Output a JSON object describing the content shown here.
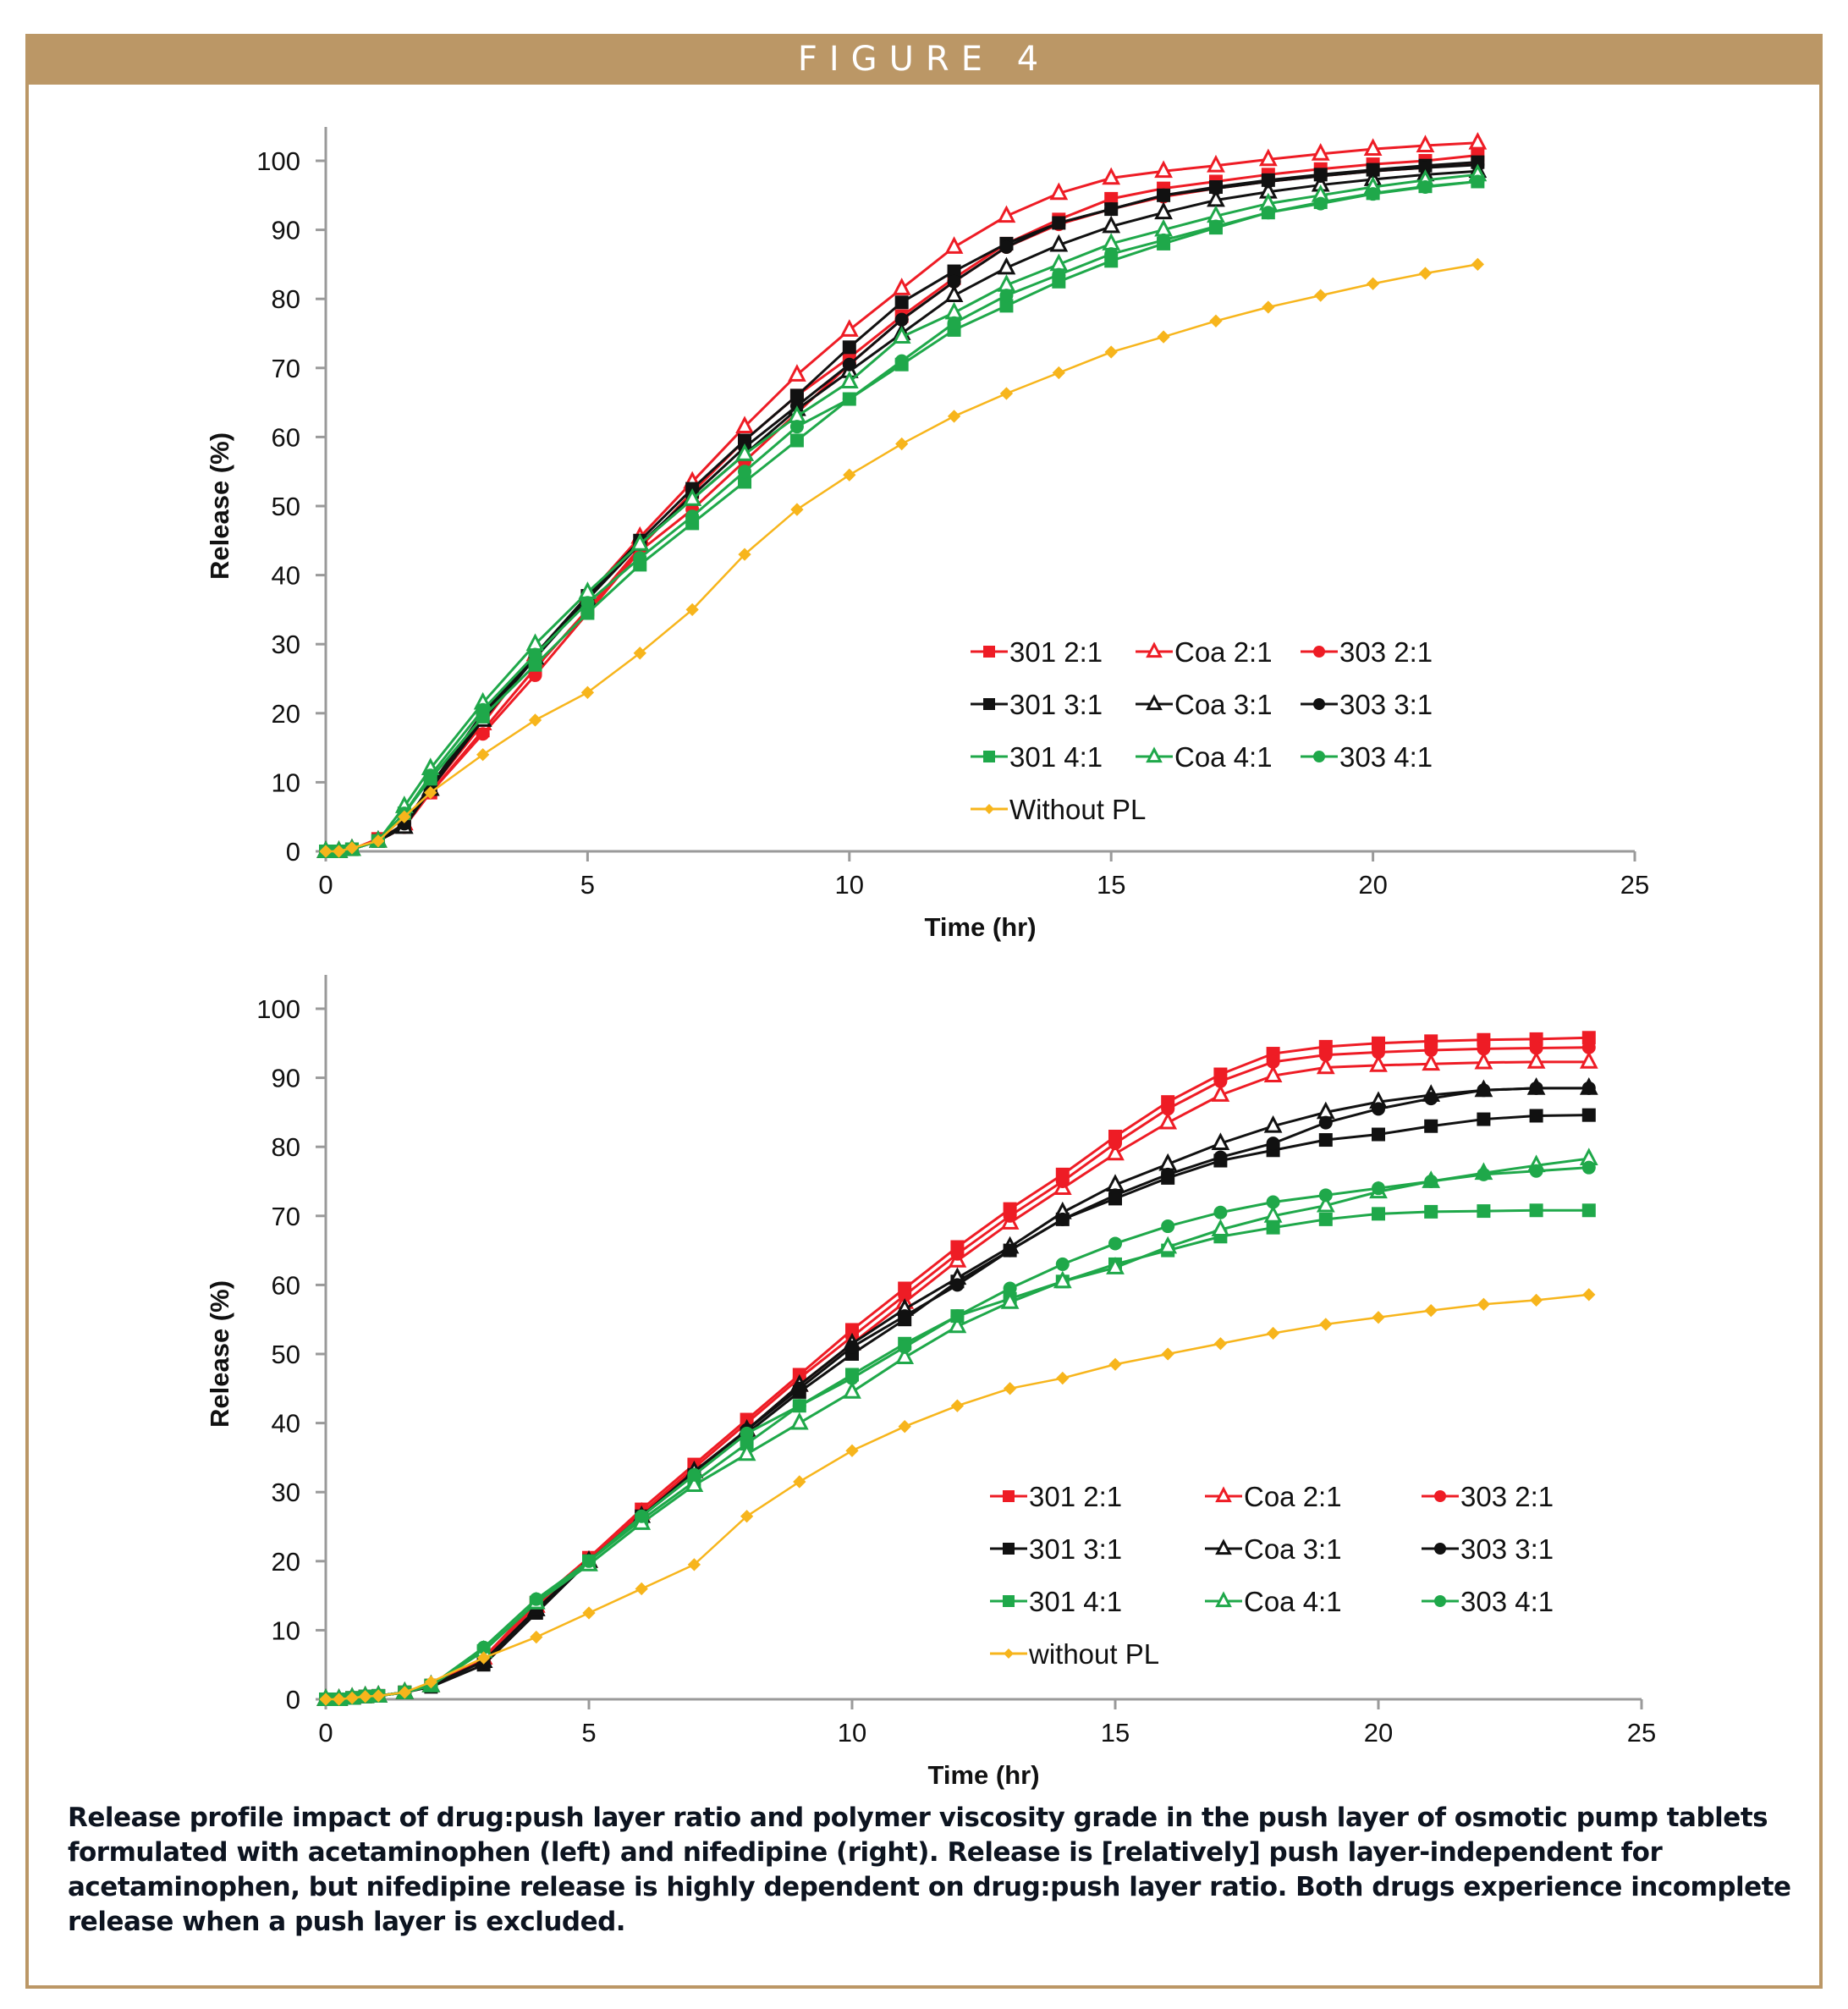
{
  "figure": {
    "title": "FIGURE 4",
    "caption": "Release profile impact of drug:push layer ratio and polymer viscosity grade in the push layer of osmotic pump tablets formulated with acetaminophen (left) and nifedipine (right). Release is [relatively] push layer-independent for acetaminophen, but nifedipine release is highly dependent on drug:push layer ratio. Both drugs experience incomplete release when a push layer is excluded.",
    "colors": {
      "frame": "#bb9766",
      "red": "#ee1c25",
      "black": "#111111",
      "green": "#1fa84a",
      "yellow": "#f7b51c"
    }
  },
  "chart_data": [
    {
      "type": "line",
      "id": "top",
      "title": "",
      "xlabel": "Time (hr)",
      "ylabel": "Release (%)",
      "xlim": [
        0,
        25
      ],
      "ylim": [
        0,
        100
      ],
      "xticks": [
        0,
        5,
        10,
        15,
        20,
        25
      ],
      "yticks": [
        0,
        10,
        20,
        30,
        40,
        50,
        60,
        70,
        80,
        90,
        100
      ],
      "grid": false,
      "legend_position": "lower-right",
      "x": [
        0,
        0.25,
        0.5,
        1,
        1.5,
        2,
        3,
        4,
        5,
        6,
        7,
        8,
        9,
        10,
        11,
        12,
        13,
        14,
        15,
        16,
        17,
        18,
        19,
        20,
        21,
        22
      ],
      "series": [
        {
          "name": "301 2:1",
          "color": "red",
          "marker": "square",
          "values": [
            0,
            0,
            0.3,
            1.8,
            3.8,
            8.5,
            17.5,
            26.5,
            35,
            44,
            52,
            59.5,
            66,
            71.5,
            77.5,
            83,
            88,
            91.5,
            94.5,
            96,
            97,
            98,
            98.8,
            99.5,
            100,
            100.8
          ]
        },
        {
          "name": "Coa 2:1",
          "color": "red",
          "marker": "triangle-open",
          "values": [
            0,
            0,
            0.3,
            1.5,
            4,
            9,
            18.5,
            28.5,
            37,
            45.5,
            53.5,
            61.5,
            69,
            75.5,
            81.5,
            87.5,
            92,
            95.3,
            97.5,
            98.5,
            99.3,
            100.2,
            101,
            101.7,
            102.2,
            102.6
          ]
        },
        {
          "name": "303 2:1",
          "color": "red",
          "marker": "circle",
          "values": [
            0,
            0,
            0.3,
            1.5,
            3.5,
            8.5,
            17,
            25.5,
            34.5,
            43.5,
            49.5,
            56.5,
            63.5,
            70.5,
            77,
            82.5,
            87.5,
            90.8,
            93,
            94.8,
            96,
            97,
            97.8,
            98.5,
            99,
            99.5
          ]
        },
        {
          "name": "301 3:1",
          "color": "black",
          "marker": "square",
          "values": [
            0,
            0,
            0.3,
            1.5,
            4,
            9.5,
            19.5,
            28.5,
            37,
            45,
            52.5,
            59.5,
            66,
            73,
            79.5,
            84,
            88,
            91,
            93,
            95,
            96.2,
            97.2,
            98,
            98.7,
            99.3,
            99.8
          ]
        },
        {
          "name": "Coa 3:1",
          "color": "black",
          "marker": "triangle-open",
          "values": [
            0,
            0,
            0.3,
            1.5,
            3.5,
            9,
            19,
            28,
            36.5,
            44.5,
            51,
            57.5,
            64,
            69.5,
            75,
            80.5,
            84.5,
            87.8,
            90.5,
            92.5,
            94.3,
            95.5,
            96.5,
            97.3,
            98,
            98.5
          ]
        },
        {
          "name": "303 3:1",
          "color": "black",
          "marker": "circle",
          "values": [
            0,
            0,
            0.3,
            1.5,
            4,
            9.5,
            20,
            28.5,
            37,
            44.5,
            51.5,
            58.5,
            64.5,
            70.5,
            77,
            82.5,
            87.5,
            91,
            93,
            95,
            96,
            97,
            97.8,
            98.5,
            99,
            99.4
          ]
        },
        {
          "name": "301 4:1",
          "color": "green",
          "marker": "square",
          "values": [
            0,
            0,
            0.3,
            1.5,
            5.5,
            10.5,
            19.5,
            27,
            34.5,
            41.5,
            47.5,
            53.5,
            59.5,
            65.5,
            70.5,
            75.5,
            79,
            82.5,
            85.5,
            88,
            90.3,
            92.5,
            94,
            95.3,
            96.3,
            97
          ]
        },
        {
          "name": "Coa 4:1",
          "color": "green",
          "marker": "triangle-open",
          "values": [
            0,
            0,
            0.3,
            1.5,
            6.5,
            12,
            21.5,
            30,
            37.5,
            44.5,
            51,
            57.5,
            63,
            68,
            74.5,
            78,
            82,
            85,
            88,
            90,
            92,
            93.8,
            95,
            96.2,
            97.2,
            98
          ]
        },
        {
          "name": "303 4:1",
          "color": "green",
          "marker": "circle",
          "values": [
            0,
            0,
            0.3,
            1.5,
            5.5,
            11,
            20.5,
            28.5,
            36,
            42.5,
            48.5,
            55,
            61.5,
            65.5,
            71,
            76.5,
            80.5,
            83.5,
            86.5,
            88.5,
            90.5,
            92.5,
            93.8,
            95.2,
            96.2,
            97
          ]
        },
        {
          "name": "Without PL",
          "color": "yellow",
          "marker": "diamond",
          "values": [
            0,
            0,
            0.5,
            1.5,
            5,
            8.5,
            14,
            19,
            23,
            28.7,
            35,
            43,
            49.5,
            54.5,
            59,
            63,
            66.3,
            69.3,
            72.3,
            74.5,
            76.8,
            78.8,
            80.5,
            82.2,
            83.7,
            85
          ]
        }
      ]
    },
    {
      "type": "line",
      "id": "bottom",
      "title": "",
      "xlabel": "Time (hr)",
      "ylabel": "Release (%)",
      "xlim": [
        0,
        25
      ],
      "ylim": [
        0,
        100
      ],
      "xticks": [
        0,
        5,
        10,
        15,
        20,
        25
      ],
      "yticks": [
        0,
        10,
        20,
        30,
        40,
        50,
        60,
        70,
        80,
        90,
        100
      ],
      "grid": false,
      "legend_position": "lower-right",
      "x": [
        0,
        0.25,
        0.5,
        0.75,
        1,
        1.5,
        2,
        3,
        4,
        5,
        6,
        7,
        8,
        9,
        10,
        11,
        12,
        13,
        14,
        15,
        16,
        17,
        18,
        19,
        20,
        21,
        22,
        23,
        24
      ],
      "series": [
        {
          "name": "301 2:1",
          "color": "red",
          "marker": "square",
          "values": [
            0,
            0,
            0.2,
            0.4,
            0.5,
            1,
            2,
            6,
            14,
            20.5,
            27.5,
            34,
            40.5,
            47,
            53.5,
            59.5,
            65.5,
            71,
            76,
            81.5,
            86.5,
            90.5,
            93.5,
            94.5,
            95,
            95.3,
            95.5,
            95.6,
            95.8
          ]
        },
        {
          "name": "Coa 2:1",
          "color": "red",
          "marker": "triangle-open",
          "values": [
            0,
            0,
            0.2,
            0.4,
            0.5,
            1,
            2,
            6,
            13.5,
            20,
            27,
            33,
            39,
            45.5,
            51.5,
            57.5,
            63.5,
            69,
            74,
            79,
            83.5,
            87.5,
            90.3,
            91.5,
            91.8,
            92,
            92.2,
            92.3,
            92.3
          ]
        },
        {
          "name": "303 2:1",
          "color": "red",
          "marker": "circle",
          "values": [
            0,
            0,
            0.2,
            0.4,
            0.5,
            1,
            2,
            6,
            14,
            20.5,
            27,
            33.5,
            40,
            46.5,
            52.5,
            58.5,
            64.5,
            70,
            75,
            80.5,
            85.5,
            89.5,
            92.3,
            93.3,
            93.7,
            94,
            94.2,
            94.3,
            94.4
          ]
        },
        {
          "name": "301 3:1",
          "color": "black",
          "marker": "square",
          "values": [
            0,
            0,
            0.2,
            0.4,
            0.5,
            1,
            1.8,
            5,
            12.5,
            20,
            26.5,
            32.5,
            38.5,
            44.5,
            50,
            55,
            60.5,
            65,
            69.5,
            72.5,
            75.5,
            78,
            79.5,
            81,
            81.8,
            83,
            84,
            84.5,
            84.6
          ]
        },
        {
          "name": "Coa 3:1",
          "color": "black",
          "marker": "triangle-open",
          "values": [
            0,
            0,
            0.2,
            0.4,
            0.5,
            1,
            2,
            5.5,
            13,
            20,
            26.5,
            33,
            39,
            45.5,
            51.5,
            56.5,
            61,
            65.5,
            70.5,
            74.5,
            77.5,
            80.5,
            83,
            85,
            86.5,
            87.5,
            88.2,
            88.5,
            88.5
          ]
        },
        {
          "name": "303 3:1",
          "color": "black",
          "marker": "circle",
          "values": [
            0,
            0,
            0.2,
            0.4,
            0.5,
            1,
            2,
            5.5,
            13,
            20,
            26.5,
            32.5,
            39,
            45,
            51,
            55.5,
            60,
            65,
            69.5,
            73,
            76,
            78.5,
            80.5,
            83.5,
            85.5,
            87,
            88.2,
            88.5,
            88.5
          ]
        },
        {
          "name": "301 4:1",
          "color": "green",
          "marker": "square",
          "values": [
            0,
            0,
            0.2,
            0.4,
            0.5,
            1,
            2,
            7,
            14,
            20,
            26,
            31.5,
            37,
            42.5,
            47,
            51.5,
            55.5,
            58,
            60.5,
            63,
            65,
            67,
            68.3,
            69.5,
            70.3,
            70.6,
            70.7,
            70.8,
            70.8
          ]
        },
        {
          "name": "Coa 4:1",
          "color": "green",
          "marker": "triangle-open",
          "values": [
            0,
            0,
            0.2,
            0.4,
            0.5,
            1,
            2,
            7,
            14,
            19.5,
            25.5,
            31,
            35.5,
            40,
            44.5,
            49.5,
            54,
            57.5,
            60.5,
            62.5,
            65.5,
            68,
            70,
            71.5,
            73.5,
            75,
            76.2,
            77.3,
            78.3
          ]
        },
        {
          "name": "303 4:1",
          "color": "green",
          "marker": "circle",
          "values": [
            0,
            0,
            0.2,
            0.4,
            0.5,
            1,
            2,
            7.5,
            14.5,
            20,
            26.5,
            32.5,
            38.5,
            42.5,
            46.5,
            51,
            55.5,
            59.5,
            63,
            66,
            68.5,
            70.5,
            72,
            73,
            74,
            75,
            76,
            76.5,
            77
          ]
        },
        {
          "name": "without PL",
          "color": "yellow",
          "marker": "diamond",
          "values": [
            0,
            0,
            0.2,
            0.4,
            0.5,
            1,
            2.5,
            6,
            9,
            12.5,
            16,
            19.5,
            26.5,
            31.5,
            36,
            39.5,
            42.5,
            45,
            46.5,
            48.5,
            50,
            51.5,
            53,
            54.3,
            55.3,
            56.3,
            57.2,
            57.8,
            58.6
          ]
        }
      ]
    }
  ]
}
